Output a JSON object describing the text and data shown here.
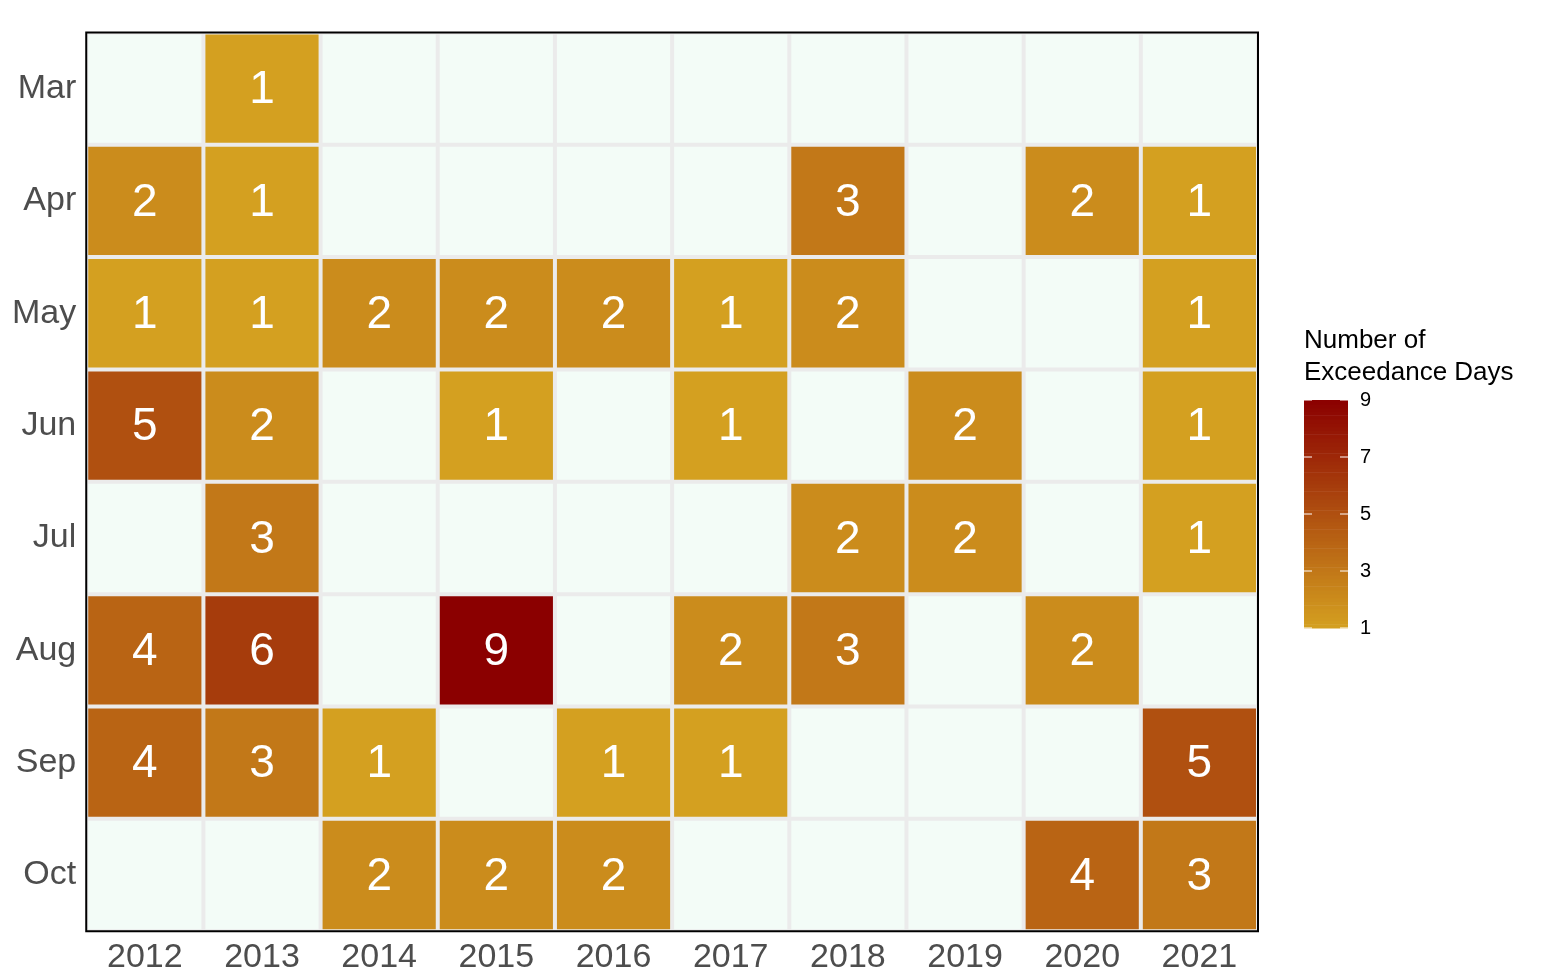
{
  "chart_data": {
    "type": "heatmap",
    "categories": [
      "2012",
      "2013",
      "2014",
      "2015",
      "2016",
      "2017",
      "2018",
      "2019",
      "2020",
      "2021"
    ],
    "y_categories": [
      "Mar",
      "Apr",
      "May",
      "Jun",
      "Jul",
      "Aug",
      "Sep",
      "Oct"
    ],
    "cells": [
      [
        null,
        1,
        null,
        null,
        null,
        null,
        null,
        null,
        null,
        null
      ],
      [
        2,
        1,
        null,
        null,
        null,
        null,
        3,
        null,
        2,
        1
      ],
      [
        1,
        1,
        2,
        2,
        2,
        1,
        2,
        null,
        null,
        1
      ],
      [
        5,
        2,
        null,
        1,
        null,
        1,
        null,
        2,
        null,
        1
      ],
      [
        null,
        3,
        null,
        null,
        null,
        null,
        2,
        2,
        null,
        1
      ],
      [
        4,
        6,
        null,
        9,
        null,
        2,
        3,
        null,
        2,
        null
      ],
      [
        4,
        3,
        1,
        null,
        1,
        1,
        null,
        null,
        null,
        5
      ],
      [
        null,
        null,
        2,
        2,
        2,
        null,
        null,
        null,
        4,
        3
      ]
    ],
    "clabel": "Number of\nExceedance Days",
    "clim": [
      1,
      9
    ],
    "cticks": [
      1,
      3,
      5,
      7,
      9
    ],
    "data_labels": true
  }
}
